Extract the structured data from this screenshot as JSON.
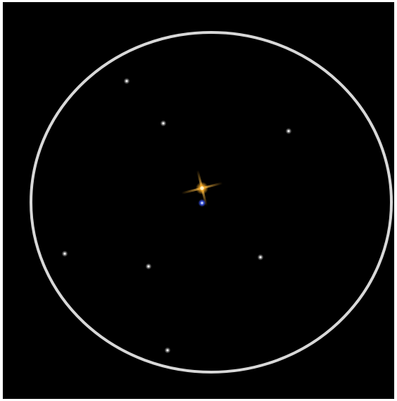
{
  "scene": {
    "subject": "double-star-telescope-eyepiece-view",
    "colors": {
      "background": "#000000",
      "border": "#ffffff",
      "eyepiece_ring": "#d8d8d8",
      "primary_star": "#ffb028",
      "primary_star_core": "#fff3c4",
      "companion_star": "#4a6cff",
      "field_star": "#cfcfcf"
    },
    "stars": [
      {
        "kind": "primary",
        "color_name": "orange-yellow"
      },
      {
        "kind": "companion",
        "color_name": "blue"
      },
      {
        "kind": "field"
      },
      {
        "kind": "field"
      },
      {
        "kind": "field"
      },
      {
        "kind": "field"
      },
      {
        "kind": "field"
      },
      {
        "kind": "field"
      },
      {
        "kind": "field"
      }
    ]
  }
}
